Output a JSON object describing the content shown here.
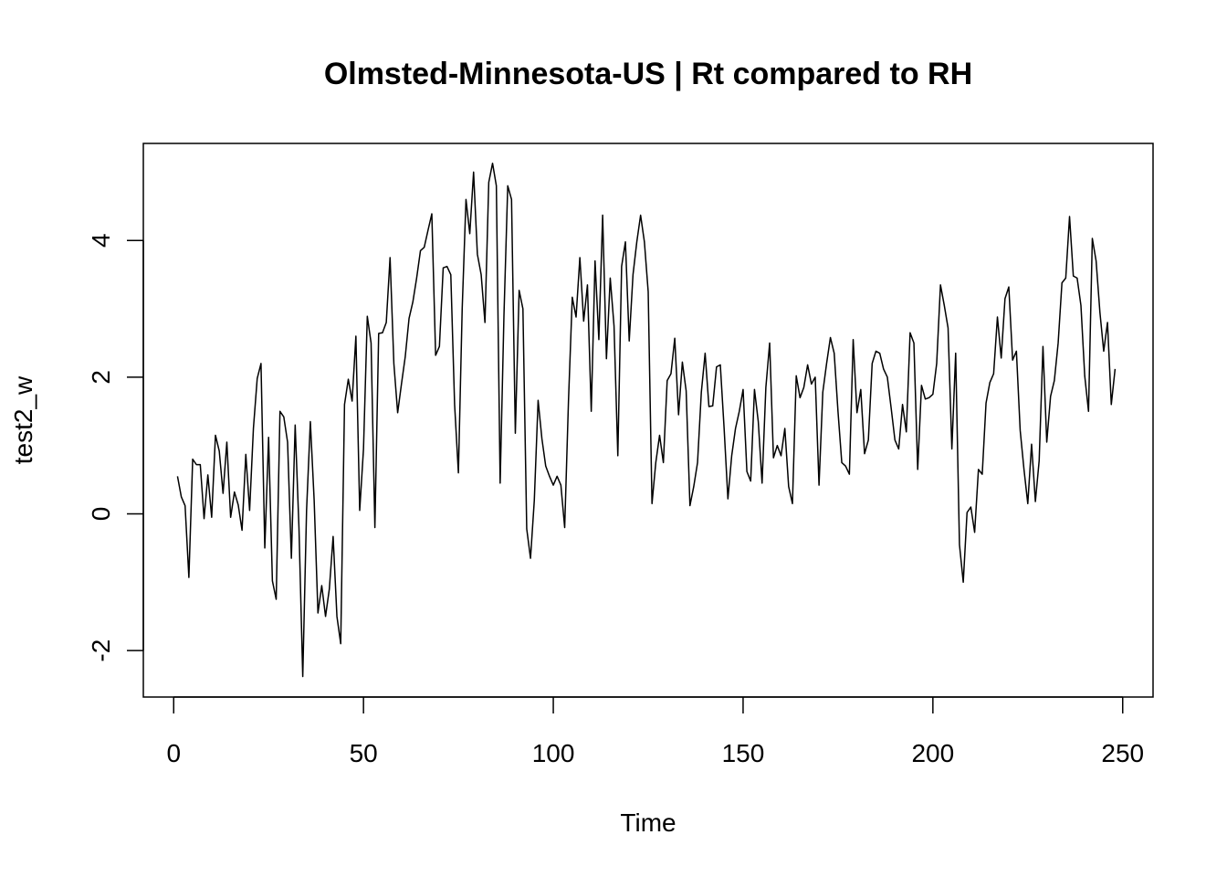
{
  "chart_data": {
    "type": "line",
    "title": "Olmsted-Minnesota-US | Rt compared to RH",
    "xlabel": "Time",
    "ylabel": "test2_w",
    "xlim": [
      -8,
      258
    ],
    "ylim": [
      -2.68,
      5.42
    ],
    "x_ticks": [
      0,
      50,
      100,
      150,
      200,
      250
    ],
    "y_ticks": [
      -2,
      0,
      2,
      4
    ],
    "grid": false,
    "legend": "none",
    "line_color": "#000000",
    "series": [
      {
        "x_start": 1,
        "x_step": 1,
        "values": [
          0.55,
          0.25,
          0.12,
          -0.93,
          0.8,
          0.72,
          0.72,
          -0.07,
          0.57,
          -0.05,
          1.15,
          0.92,
          0.3,
          1.05,
          -0.05,
          0.32,
          0.13,
          -0.24,
          0.87,
          0.05,
          1.25,
          1.98,
          2.2,
          -0.5,
          1.12,
          -0.98,
          -1.25,
          1.5,
          1.42,
          1.05,
          -0.65,
          1.3,
          -0.2,
          -2.38,
          0.05,
          1.35,
          0.2,
          -1.45,
          -1.05,
          -1.5,
          -1.1,
          -0.33,
          -1.5,
          -1.9,
          1.6,
          1.97,
          1.65,
          2.6,
          0.05,
          0.95,
          2.89,
          2.5,
          -0.2,
          2.64,
          2.65,
          2.8,
          3.75,
          2.2,
          1.48,
          1.9,
          2.3,
          2.86,
          3.1,
          3.45,
          3.85,
          3.9,
          4.15,
          4.39,
          2.32,
          2.45,
          3.6,
          3.62,
          3.5,
          1.6,
          0.6,
          3.0,
          4.6,
          4.1,
          5.0,
          3.8,
          3.5,
          2.8,
          4.85,
          5.13,
          4.8,
          0.45,
          2.9,
          4.8,
          4.6,
          1.18,
          3.27,
          3.0,
          -0.22,
          -0.65,
          0.2,
          1.66,
          1.1,
          0.7,
          0.55,
          0.42,
          0.55,
          0.42,
          -0.2,
          1.65,
          3.17,
          2.88,
          3.75,
          2.82,
          3.35,
          1.5,
          3.7,
          2.55,
          4.37,
          2.27,
          3.45,
          2.75,
          0.85,
          3.62,
          3.98,
          2.53,
          3.5,
          3.98,
          4.37,
          3.98,
          3.25,
          0.15,
          0.75,
          1.15,
          0.75,
          1.95,
          2.05,
          2.57,
          1.45,
          2.22,
          1.8,
          0.12,
          0.4,
          0.75,
          1.78,
          2.35,
          1.57,
          1.58,
          2.15,
          2.18,
          1.25,
          0.22,
          0.85,
          1.25,
          1.5,
          1.82,
          0.62,
          0.48,
          1.82,
          1.35,
          0.45,
          1.85,
          2.5,
          0.82,
          1.0,
          0.85,
          1.25,
          0.4,
          0.15,
          2.02,
          1.7,
          1.85,
          2.18,
          1.9,
          2.0,
          0.42,
          1.78,
          2.2,
          2.58,
          2.35,
          1.5,
          0.75,
          0.7,
          0.58,
          2.55,
          1.48,
          1.82,
          0.88,
          1.08,
          2.2,
          2.38,
          2.35,
          2.12,
          2.0,
          1.55,
          1.08,
          0.95,
          1.6,
          1.2,
          2.65,
          2.5,
          0.65,
          1.88,
          1.68,
          1.7,
          1.75,
          2.2,
          3.35,
          3.05,
          2.72,
          0.95,
          2.35,
          -0.45,
          -1.0,
          0.02,
          0.1,
          -0.27,
          0.65,
          0.58,
          1.62,
          1.92,
          2.05,
          2.88,
          2.28,
          3.15,
          3.32,
          2.25,
          2.38,
          1.22,
          0.65,
          0.15,
          1.02,
          0.18,
          0.78,
          2.45,
          1.05,
          1.72,
          1.95,
          2.5,
          3.38,
          3.45,
          4.35,
          3.48,
          3.45,
          3.05,
          2.02,
          1.5,
          4.03,
          3.7,
          2.95,
          2.38,
          2.8,
          1.6,
          2.12
        ]
      }
    ]
  }
}
